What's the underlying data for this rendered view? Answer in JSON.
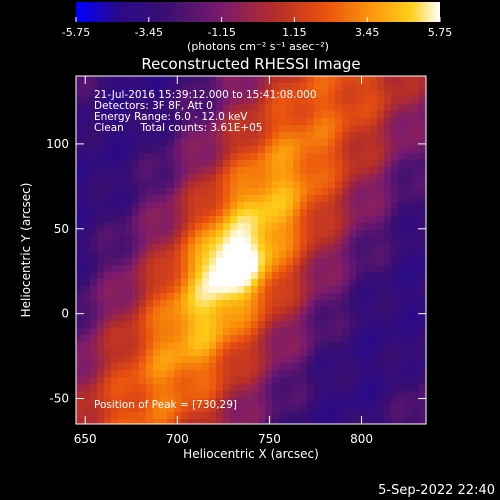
{
  "chart_data": {
    "type": "heatmap",
    "title": "Reconstructed RHESSI Image",
    "xlabel": "Heliocentric X (arcsec)",
    "ylabel": "Heliocentric Y (arcsec)",
    "xlim": [
      645,
      835
    ],
    "ylim": [
      -65,
      140
    ],
    "xticks": [
      650,
      700,
      750,
      800
    ],
    "yticks": [
      -50,
      0,
      50,
      100
    ],
    "colorbar": {
      "min": -5.75,
      "max": 5.75,
      "tick_labels": [
        "-5.75",
        "-3.45",
        "-1.15",
        "1.15",
        "3.45",
        "5.75"
      ],
      "units_label": "(photons cm⁻² s⁻¹ asec⁻²)",
      "colormap": [
        "#0000ff",
        "#2a0a88",
        "#3b0f70",
        "#7a1b6d",
        "#b52e28",
        "#e8500f",
        "#fa8f0a",
        "#ffd01a",
        "#ffffff"
      ]
    },
    "annotations": {
      "line1": "21-Jul-2016 15:39:12.000 to 15:41:08.000",
      "line2": "Detectors: 3F 8F, Att 0",
      "line3": "Energy Range: 6.0 - 12.0 keV",
      "line4": "Clean     Total counts: 3.61E+05",
      "peak": "Position of Peak = [730,29]"
    },
    "peak": {
      "x": 730,
      "y": 29
    },
    "grid": false
  },
  "footer": {
    "date": "5-Sep-2022 22:40"
  }
}
